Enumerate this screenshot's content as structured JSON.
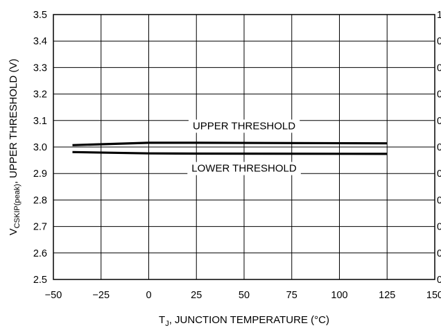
{
  "chart_data": {
    "type": "line",
    "xlabel_main": "T",
    "xlabel_sub": "J",
    "xlabel_rest": ", JUNCTION TEMPERATURE (°C)",
    "ylabel_main": "V",
    "ylabel_sub": "CSKIP(peak)",
    "ylabel_rest": ", UPPER THRESHOLD (V)",
    "xlim": [
      -50,
      150
    ],
    "ylim": [
      2.5,
      3.5
    ],
    "x_ticks": [
      "−50",
      "−25",
      "0",
      "25",
      "50",
      "75",
      "100",
      "125",
      "150"
    ],
    "y_ticks": [
      "2.5",
      "2.6",
      "2.7",
      "2.8",
      "2.9",
      "3.0",
      "3.1",
      "3.2",
      "3.3",
      "3.4",
      "3.5"
    ],
    "right_ticks": [
      "0",
      "0",
      "0",
      "0",
      "0",
      "0",
      "0",
      "0",
      "0",
      "0",
      "1"
    ],
    "grid": true,
    "series": [
      {
        "x": [
          -40,
          0,
          25,
          125
        ],
        "values": [
          3.007,
          3.016,
          3.016,
          3.014
        ]
      },
      {
        "x": [
          -40,
          0,
          25,
          125
        ],
        "values": [
          2.981,
          2.976,
          2.975,
          2.974
        ]
      }
    ],
    "annotations": [
      {
        "text": "UPPER THRESHOLD",
        "x": 50,
        "y": 3.08
      },
      {
        "text": "LOWER THRESHOLD",
        "x": 50,
        "y": 2.92
      }
    ]
  }
}
